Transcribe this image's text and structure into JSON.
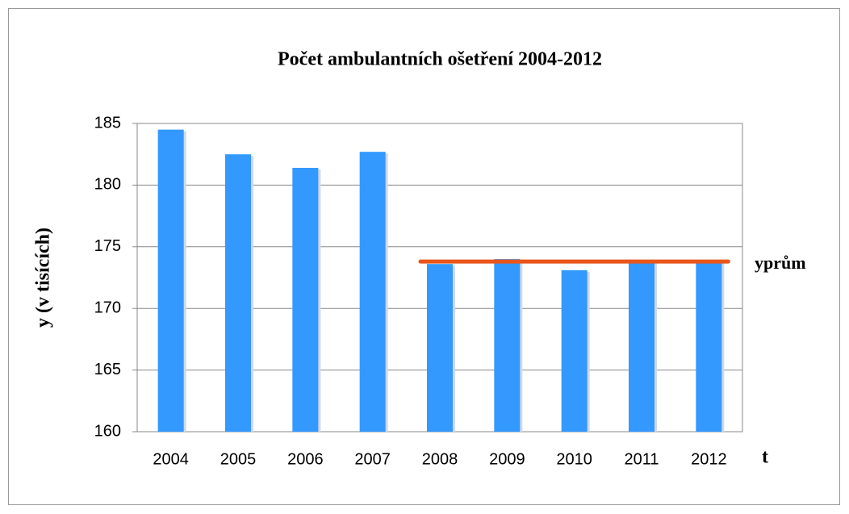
{
  "chart_data": {
    "type": "bar",
    "title": "Počet ambulantních ošetření 2004-2012",
    "x_label": "t",
    "y_label": "y (v tisících)",
    "categories": [
      "2004",
      "2005",
      "2006",
      "2007",
      "2008",
      "2009",
      "2010",
      "2011",
      "2012"
    ],
    "values": [
      184.5,
      182.5,
      181.4,
      182.7,
      173.6,
      174,
      173.1,
      173.9,
      173.8
    ],
    "color": "#3399ff",
    "lines": [
      {
        "name": "yprům",
        "color": "#e8561b",
        "values": [
          null,
          null,
          null,
          null,
          173.8,
          173.8,
          173.8,
          173.8,
          173.8
        ]
      }
    ],
    "ylim": [
      160,
      185
    ],
    "yticks": [
      160,
      165,
      170,
      175,
      180,
      185
    ],
    "grid": true
  }
}
